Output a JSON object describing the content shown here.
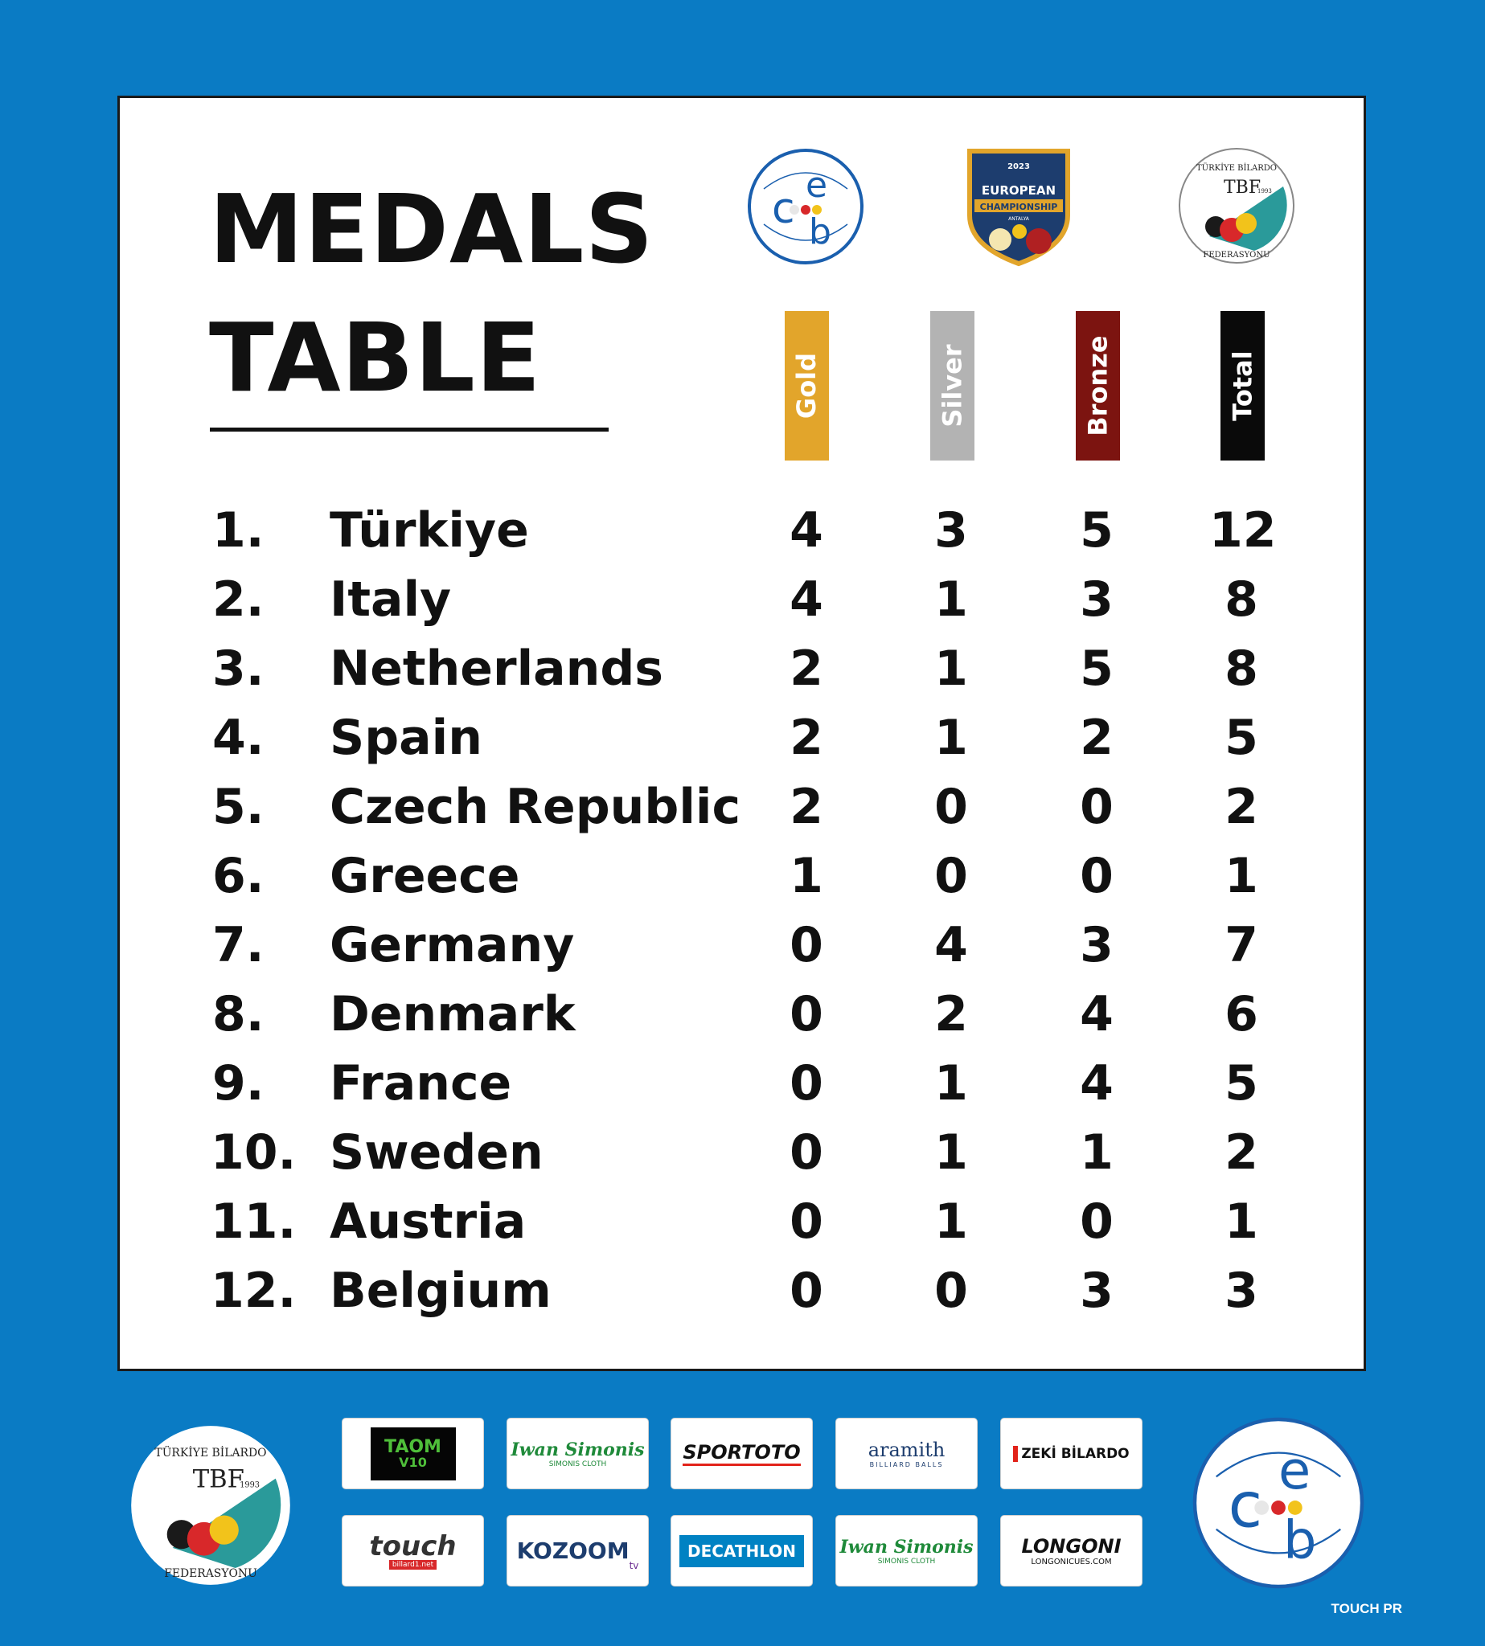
{
  "title": {
    "line1": "MEDALS",
    "line2": "TABLE"
  },
  "header_logos": {
    "ceb_letters": "ceb",
    "championship": {
      "year": "2023",
      "line1": "EUROPEAN",
      "line2": "CHAMPIONSHIP",
      "city": "ANTALYA"
    },
    "tbf": {
      "arc_top": "TÜRKİYE BİLARDO",
      "arc_bottom": "FEDERASYONU",
      "mono": "TBF",
      "year": "1993"
    }
  },
  "columns": {
    "gold": {
      "label": "Gold",
      "color": "#e2a52b"
    },
    "silver": {
      "label": "Silver",
      "color": "#b3b3b3"
    },
    "bronze": {
      "label": "Bronze",
      "color": "#7c1410"
    },
    "total": {
      "label": "Total",
      "color": "#0a0a0a"
    }
  },
  "rows": [
    {
      "rank": "1.",
      "country": "Türkiye",
      "gold": "4",
      "silver": "3",
      "bronze": "5",
      "total": "12"
    },
    {
      "rank": "2.",
      "country": "Italy",
      "gold": "4",
      "silver": "1",
      "bronze": "3",
      "total": "8"
    },
    {
      "rank": "3.",
      "country": "Netherlands",
      "gold": "2",
      "silver": "1",
      "bronze": "5",
      "total": "8"
    },
    {
      "rank": "4.",
      "country": "Spain",
      "gold": "2",
      "silver": "1",
      "bronze": "2",
      "total": "5"
    },
    {
      "rank": "5.",
      "country": "Czech Republic",
      "gold": "2",
      "silver": "0",
      "bronze": "0",
      "total": "2"
    },
    {
      "rank": "6.",
      "country": "Greece",
      "gold": "1",
      "silver": "0",
      "bronze": "0",
      "total": "1"
    },
    {
      "rank": "7.",
      "country": "Germany",
      "gold": "0",
      "silver": "4",
      "bronze": "3",
      "total": "7"
    },
    {
      "rank": "8.",
      "country": "Denmark",
      "gold": "0",
      "silver": "2",
      "bronze": "4",
      "total": "6"
    },
    {
      "rank": "9.",
      "country": "France",
      "gold": "0",
      "silver": "1",
      "bronze": "4",
      "total": "5"
    },
    {
      "rank": "10.",
      "country": "Sweden",
      "gold": "0",
      "silver": "1",
      "bronze": "1",
      "total": "2"
    },
    {
      "rank": "11.",
      "country": "Austria",
      "gold": "0",
      "silver": "1",
      "bronze": "0",
      "total": "1"
    },
    {
      "rank": "12.",
      "country": "Belgium",
      "gold": "0",
      "silver": "0",
      "bronze": "3",
      "total": "3"
    }
  ],
  "sponsors": [
    {
      "name": "TAOM V10",
      "text": "TAOM",
      "sub": "V10"
    },
    {
      "name": "Iwan Simonis",
      "text": "Iwan Simonis",
      "sub": "SIMONIS CLOTH"
    },
    {
      "name": "SporToto",
      "text": "SPORTOTO"
    },
    {
      "name": "Aramith",
      "text": "aramith",
      "sub": "BILLIARD BALLS"
    },
    {
      "name": "Zeki Bilardo",
      "text": "ZEKİ BİLARDO"
    },
    {
      "name": "Touch",
      "text": "touch",
      "sub": "billard1.net"
    },
    {
      "name": "Kozoom",
      "text": "KOZOOM",
      "sub": "tv"
    },
    {
      "name": "Decathlon",
      "text": "DECATHLON"
    },
    {
      "name": "Iwan Simonis 2",
      "text": "Iwan Simonis",
      "sub": "SIMONIS CLOTH"
    },
    {
      "name": "Longoni",
      "text": "LONGONI",
      "sub": "LONGONICUES.COM"
    }
  ],
  "credit": "TOUCH PR"
}
